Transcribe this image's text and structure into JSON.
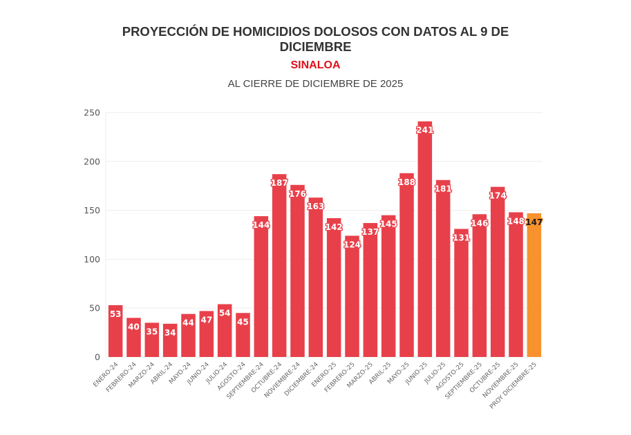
{
  "header": {
    "title_line1": "PROYECCIÓN DE HOMICIDIOS DOLOSOS CON DATOS AL 9 DE",
    "title_line2": "DICIEMBRE",
    "state": "SINALOA",
    "period": "AL CIERRE DE DICIEMBRE DE 2025"
  },
  "colors": {
    "bar": "#e8404a",
    "bar_projection": "#f7922e",
    "label_text": "#ffffff",
    "label_text_projection": "#1a1a1a",
    "state_title": "#e0101a",
    "grid": "#eeeeee"
  },
  "chart_data": {
    "type": "bar",
    "title": "PROYECCIÓN DE HOMICIDIOS DOLOSOS CON DATOS AL 9 DE DICIEMBRE",
    "subtitle": "SINALOA — AL CIERRE DE DICIEMBRE DE 2025",
    "xlabel": "",
    "ylabel": "",
    "ylim": [
      0,
      250
    ],
    "yticks": [
      0,
      50,
      100,
      150,
      200,
      250
    ],
    "grid": true,
    "legend": "none",
    "categories": [
      "ENERO-24",
      "FEBRERO-24",
      "MARZO-24",
      "ABRIL-24",
      "MAYO-24",
      "JUNIO-24",
      "JULIO-24",
      "AGOSTO-24",
      "SEPTIEMBRE-24",
      "OCTUBRE-24",
      "NOVIEMBRE-24",
      "DICIEMBRE-24",
      "ENERO-25",
      "FEBRERO-25",
      "MARZO-25",
      "ABRIL-25",
      "MAYO-25",
      "JUNIO-25",
      "JULIO-25",
      "AGOSTO-25",
      "SEPTIEMBRE-25",
      "OCTUBRE-25",
      "NOVIEMBRE-25",
      "PROY DICIEMBRE-25"
    ],
    "values": [
      53,
      40,
      35,
      34,
      44,
      47,
      54,
      45,
      144,
      187,
      176,
      163,
      142,
      124,
      137,
      145,
      188,
      241,
      181,
      131,
      146,
      174,
      148,
      147
    ],
    "projection_index": 23
  }
}
